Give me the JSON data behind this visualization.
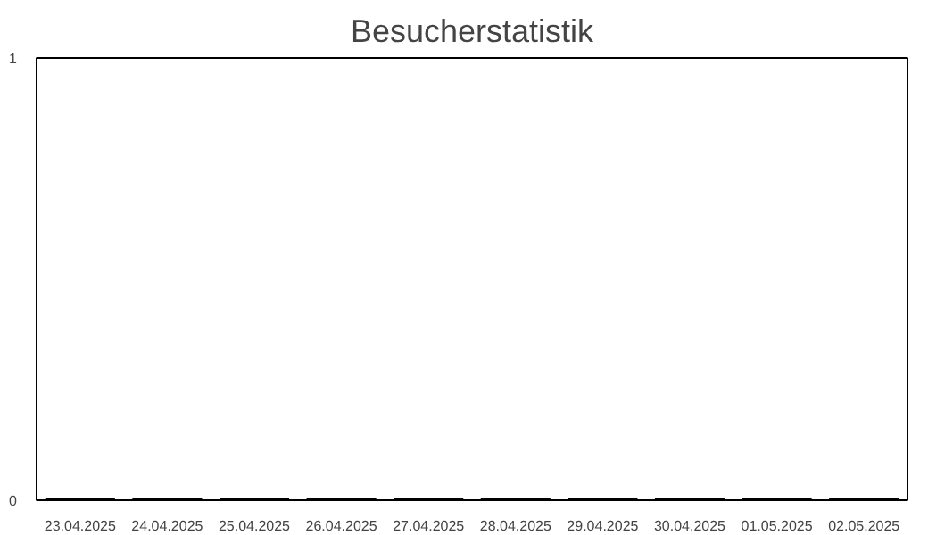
{
  "chart_data": {
    "type": "bar",
    "title": "Besucherstatistik",
    "categories": [
      "23.04.2025",
      "24.04.2025",
      "25.04.2025",
      "26.04.2025",
      "27.04.2025",
      "28.04.2025",
      "29.04.2025",
      "30.04.2025",
      "01.05.2025",
      "02.05.2025"
    ],
    "values": [
      0,
      0,
      0,
      0,
      0,
      0,
      0,
      0,
      0,
      0
    ],
    "color": "#000000",
    "ylim": [
      0,
      1
    ],
    "yticks": [
      0,
      1
    ],
    "grid": false
  }
}
